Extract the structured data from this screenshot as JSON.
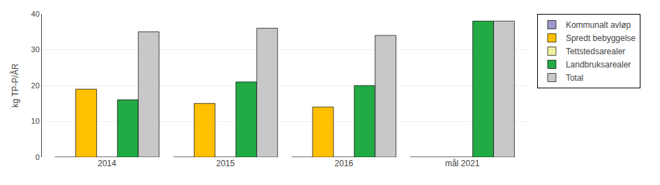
{
  "chart_data": {
    "type": "bar",
    "categories": [
      "2014",
      "2015",
      "2016",
      "mål 2021"
    ],
    "series": [
      {
        "name": "Kommunalt avløp",
        "color": "#9999CC",
        "values": [
          0,
          0,
          0,
          0
        ]
      },
      {
        "name": "Spredt bebyggelse",
        "color": "#FFC000",
        "values": [
          19,
          15,
          14,
          0
        ]
      },
      {
        "name": "Tettstedsarealer",
        "color": "#F0F0A0",
        "values": [
          0,
          0,
          0,
          0
        ]
      },
      {
        "name": "Landbruksarealer",
        "color": "#22AA44",
        "values": [
          16,
          21,
          20,
          38
        ]
      },
      {
        "name": "Total",
        "color": "#C8C8C8",
        "values": [
          35,
          36,
          34,
          38
        ]
      }
    ],
    "ylabel": "kg TP-P/ÅR",
    "ylim": [
      0,
      40
    ],
    "yticks": [
      0,
      10,
      20,
      30,
      40
    ],
    "grid": true,
    "legend": "upper right"
  }
}
